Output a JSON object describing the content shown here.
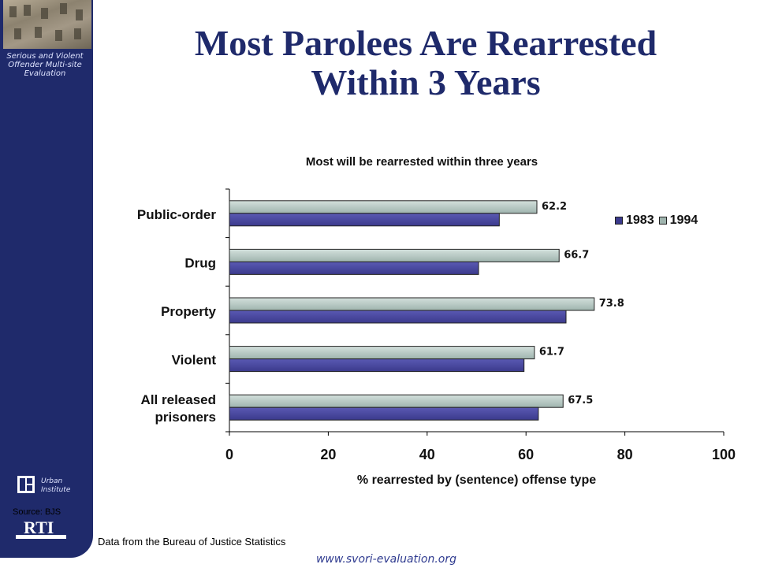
{
  "slide": {
    "title_line1": "Most Parolees Are Rearrested",
    "title_line2": "Within 3 Years",
    "sidebar_caption": "Serious and Violent Offender Multi-site Evaluation",
    "urban_logo_text_line1": "Urban",
    "urban_logo_text_line2": "Institute",
    "source_label": "Source: BJS",
    "rti_logo_text": "RTI",
    "source_note": "Data from the Bureau of Justice Statistics",
    "footer_url": "www.svori-evaluation.org"
  },
  "colors": {
    "sidebar": "#1f2a6b",
    "series_1983": "#3b3a8c",
    "series_1994": "#9fb4ae",
    "title": "#1f2a6b"
  },
  "chart_data": {
    "type": "bar",
    "orientation": "horizontal",
    "title": "Most will be rearrested within three years",
    "xlabel": "% rearrested by (sentence) offense type",
    "ylabel": "",
    "xlim": [
      0,
      100
    ],
    "xticks": [
      0,
      20,
      40,
      60,
      80,
      100
    ],
    "grid": false,
    "legend_position": "top-right",
    "categories": [
      "Public-order",
      "Drug",
      "Property",
      "Violent",
      "All released prisoners"
    ],
    "category_lines": [
      [
        "Public-order"
      ],
      [
        "Drug"
      ],
      [
        "Property"
      ],
      [
        "Violent"
      ],
      [
        "All released",
        "prisoners"
      ]
    ],
    "series": [
      {
        "name": "1983",
        "values": [
          54.6,
          50.4,
          68.1,
          59.6,
          62.5
        ]
      },
      {
        "name": "1994",
        "values": [
          62.2,
          66.7,
          73.8,
          61.7,
          67.5
        ]
      }
    ],
    "data_labels_series": "1994",
    "data_labels": [
      "62.2",
      "66.7",
      "73.8",
      "61.7",
      "67.5"
    ]
  }
}
